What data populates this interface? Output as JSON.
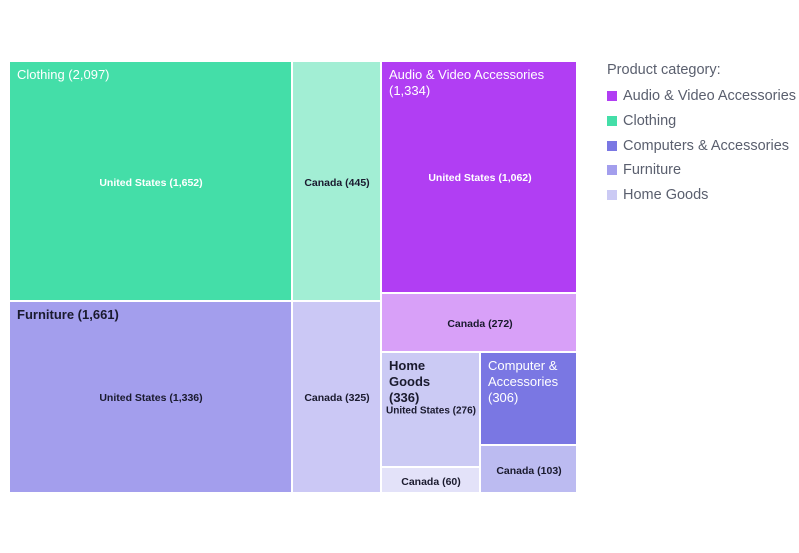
{
  "chart_data": {
    "type": "treemap",
    "legend_title": "Product category:",
    "legend_placement": "right",
    "categories": [
      {
        "name": "Audio & Video Accessories",
        "total": "1,334",
        "color": "#b13ef3",
        "children": [
          {
            "name": "United States",
            "value": "1,062",
            "color": "#b13ef3"
          },
          {
            "name": "Canada",
            "value": "272",
            "color": "#d8a0f8"
          }
        ]
      },
      {
        "name": "Clothing",
        "total": "2,097",
        "color": "#44dea8",
        "children": [
          {
            "name": "United States",
            "value": "1,652",
            "color": "#44dea8"
          },
          {
            "name": "Canada",
            "value": "445",
            "color": "#a2eed4"
          }
        ]
      },
      {
        "name": "Computers & Accessories",
        "group_label": "Computer & Accessories",
        "total": "306",
        "color": "#7a77e3",
        "children": [
          {
            "name": "Canada",
            "value": "103",
            "color": "#bcbbf1"
          }
        ]
      },
      {
        "name": "Furniture",
        "total": "1,661",
        "color": "#a39eed",
        "children": [
          {
            "name": "United States",
            "value": "1,336",
            "color": "#a39eed"
          },
          {
            "name": "Canada",
            "value": "325",
            "color": "#cbc8f5"
          }
        ]
      },
      {
        "name": "Home Goods",
        "total": "336",
        "color": "#cbcaf4",
        "children": [
          {
            "name": "United States",
            "value": "276",
            "color": "#cbcaf4"
          },
          {
            "name": "Canada",
            "value": "60",
            "color": "#e3e2f9"
          }
        ]
      }
    ]
  },
  "labels": {
    "clothing_group": "Clothing (2,097)",
    "clothing_us": "United States (1,652)",
    "clothing_ca": "Canada (445)",
    "audio_group": "Audio & Video Accessories (1,334)",
    "audio_us": "United States (1,062)",
    "audio_ca": "Canada (272)",
    "furniture_group": "Furniture (1,661)",
    "furniture_us": "United States (1,336)",
    "furniture_ca": "Canada (325)",
    "home_group": "Home Goods (336)",
    "home_us": "United States (276)",
    "home_ca": "Canada (60)",
    "computer_group": "Computer & Accessories (306)",
    "computer_ca": "Canada (103)"
  },
  "legend": {
    "title": "Product category:",
    "items": [
      {
        "label": "Audio & Video Accessories",
        "color": "#b13ef3"
      },
      {
        "label": "Clothing",
        "color": "#44dea8"
      },
      {
        "label": "Computers & Accessories",
        "color": "#7a77e3"
      },
      {
        "label": "Furniture",
        "color": "#a39eed"
      },
      {
        "label": "Home Goods",
        "color": "#cbcaf4"
      }
    ]
  }
}
